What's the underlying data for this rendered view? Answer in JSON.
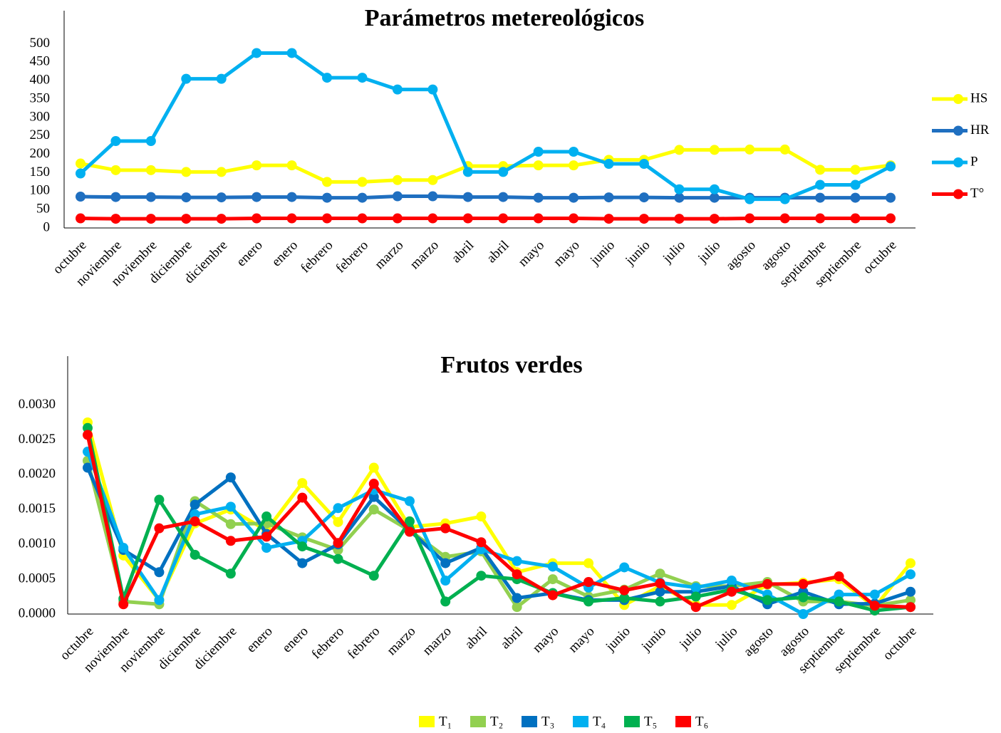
{
  "chart_data": [
    {
      "type": "line",
      "title": "Parámetros metereológicos",
      "categories": [
        "octubre",
        "noviembre",
        "noviembre",
        "diciembre",
        "diciembre",
        "enero",
        "enero",
        "febrero",
        "febrero",
        "marzo",
        "marzo",
        "abril",
        "abril",
        "mayo",
        "mayo",
        "junio",
        "junio",
        "julio",
        "julio",
        "agosto",
        "agosto",
        "septiembre",
        "septiembre",
        "octubre"
      ],
      "series": [
        {
          "name": "HS",
          "color": "#ffff00",
          "values": [
            175,
            157,
            157,
            152,
            152,
            170,
            170,
            125,
            125,
            130,
            130,
            168,
            168,
            170,
            170,
            185,
            185,
            212,
            212,
            213,
            213,
            158,
            158,
            170
          ]
        },
        {
          "name": "HR",
          "color": "#1f6fc0",
          "values": [
            85,
            84,
            84,
            83,
            83,
            84,
            84,
            82,
            82,
            86,
            86,
            84,
            84,
            82,
            82,
            83,
            83,
            82,
            82,
            82,
            82,
            82,
            82,
            82
          ]
        },
        {
          "name": "P",
          "color": "#00b0f0",
          "values": [
            148,
            236,
            236,
            405,
            405,
            475,
            475,
            408,
            408,
            376,
            376,
            152,
            152,
            207,
            207,
            174,
            174,
            105,
            105,
            78,
            78,
            117,
            117,
            167
          ]
        },
        {
          "name": "T°",
          "color": "#ff0000",
          "values": [
            26,
            25,
            25,
            25,
            25,
            26,
            26,
            26,
            26,
            26,
            26,
            26,
            26,
            26,
            26,
            25,
            25,
            25,
            25,
            26,
            26,
            26,
            26,
            26
          ]
        }
      ],
      "ylim": [
        0,
        590
      ],
      "yticks": [
        0,
        50,
        100,
        150,
        200,
        250,
        300,
        350,
        400,
        450,
        500
      ],
      "grid": false,
      "legend": "right"
    },
    {
      "type": "line",
      "title": "Frutos verdes",
      "categories": [
        "octubre",
        "noviembre",
        "noviembre",
        "diciembre",
        "diciembre",
        "enero",
        "enero",
        "febrero",
        "febrero",
        "marzo",
        "marzo",
        "abril",
        "abril",
        "mayo",
        "mayo",
        "junio",
        "junio",
        "julio",
        "julio",
        "agosto",
        "agosto",
        "septiembre",
        "septiembre",
        "octubre"
      ],
      "series": [
        {
          "name": "T₁",
          "color": "#ffff00",
          "values": [
            0.00275,
            0.00084,
            0.0002,
            0.0013,
            0.0015,
            0.0012,
            0.00188,
            0.00132,
            0.0021,
            0.00125,
            0.0013,
            0.0014,
            0.0006,
            0.00073,
            0.00073,
            0.00013,
            0.0004,
            0.00013,
            0.00013,
            0.00042,
            0.00045,
            0.0005,
            0.0001,
            0.00073
          ]
        },
        {
          "name": "T₂",
          "color": "#92d050",
          "values": [
            0.0022,
            0.00018,
            0.00014,
            0.00162,
            0.00129,
            0.0013,
            0.0011,
            0.00092,
            0.0015,
            0.0012,
            0.00082,
            0.0009,
            0.0001,
            0.0005,
            0.00025,
            0.00035,
            0.00058,
            0.0004,
            0.0004,
            0.00046,
            0.00018,
            0.00018,
            0.00012,
            0.0002
          ]
        },
        {
          "name": "T₃",
          "color": "#0070c0",
          "values": [
            0.0021,
            0.00092,
            0.0006,
            0.00157,
            0.00196,
            0.00115,
            0.00073,
            0.001,
            0.00168,
            0.0012,
            0.00073,
            0.00095,
            0.00023,
            0.0003,
            0.0002,
            0.0002,
            0.00032,
            0.00032,
            0.0004,
            0.00014,
            0.00032,
            0.00014,
            0.00015,
            0.00032
          ]
        },
        {
          "name": "T₄",
          "color": "#00b0f0",
          "values": [
            0.00233,
            0.00095,
            0.0002,
            0.00143,
            0.00154,
            0.00095,
            0.00105,
            0.00152,
            0.00178,
            0.00162,
            0.00048,
            0.00093,
            0.00076,
            0.00068,
            0.00038,
            0.00067,
            0.00045,
            0.00038,
            0.00048,
            0.00028,
            0.0,
            0.00028,
            0.00028,
            0.00057
          ]
        },
        {
          "name": "T₅",
          "color": "#00b050",
          "values": [
            0.00267,
            0.00022,
            0.00164,
            0.00085,
            0.00058,
            0.0014,
            0.00097,
            0.00079,
            0.00055,
            0.00133,
            0.00018,
            0.00055,
            0.0005,
            0.0003,
            0.00018,
            0.00023,
            0.00018,
            0.00025,
            0.00035,
            0.0002,
            0.00024,
            0.00018,
            5e-05,
            0.0001
          ]
        },
        {
          "name": "T₆",
          "color": "#ff0000",
          "values": [
            0.00257,
            0.00014,
            0.00123,
            0.00133,
            0.00105,
            0.00111,
            0.00167,
            0.00102,
            0.00187,
            0.00118,
            0.00123,
            0.00103,
            0.00057,
            0.00027,
            0.00046,
            0.00034,
            0.00044,
            0.0001,
            0.00032,
            0.00043,
            0.00043,
            0.00054,
            0.00012,
            0.0001
          ]
        }
      ],
      "ylim": [
        0,
        0.0037
      ],
      "yticks": [
        {
          "value": 0,
          "label": "0.0000"
        },
        {
          "value": 0.0005,
          "label": "0.0005"
        },
        {
          "value": 0.001,
          "label": "0.0010"
        },
        {
          "value": 0.0015,
          "label": "0.0015"
        },
        {
          "value": 0.002,
          "label": "0.0020"
        },
        {
          "value": 0.0025,
          "label": "0.0025"
        },
        {
          "value": 0.003,
          "label": "0.0030"
        }
      ],
      "grid": false,
      "legend": "bottom"
    }
  ]
}
